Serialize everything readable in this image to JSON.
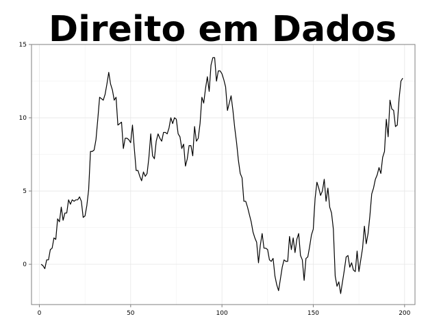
{
  "chart_data": {
    "type": "line",
    "title": "Direito em Dados",
    "xlabel": "",
    "ylabel": "",
    "xlim": [
      -4.3,
      205.7
    ],
    "ylim": [
      -2.75,
      15
    ],
    "x_ticks": [
      0,
      50,
      100,
      150,
      200
    ],
    "y_ticks": [
      0,
      5,
      10,
      15
    ],
    "grid": true,
    "series": [
      {
        "values": [
          [
            1,
            0.0
          ],
          [
            2,
            -0.1
          ],
          [
            3,
            -0.3
          ],
          [
            4,
            0.3
          ],
          [
            5,
            0.3
          ],
          [
            6,
            1.0
          ],
          [
            7,
            1.1
          ],
          [
            8,
            1.8
          ],
          [
            9,
            1.7
          ],
          [
            10,
            3.1
          ],
          [
            11,
            2.9
          ],
          [
            12,
            3.9
          ],
          [
            13,
            3.0
          ],
          [
            14,
            3.5
          ],
          [
            15,
            3.5
          ],
          [
            16,
            4.4
          ],
          [
            17,
            4.1
          ],
          [
            18,
            4.4
          ],
          [
            19,
            4.3
          ],
          [
            20,
            4.4
          ],
          [
            21,
            4.4
          ],
          [
            22,
            4.6
          ],
          [
            23,
            4.3
          ],
          [
            24,
            3.2
          ],
          [
            25,
            3.3
          ],
          [
            26,
            4.0
          ],
          [
            27,
            5.1
          ],
          [
            28,
            7.7
          ],
          [
            29,
            7.7
          ],
          [
            30,
            7.8
          ],
          [
            31,
            8.5
          ],
          [
            32,
            9.9
          ],
          [
            33,
            11.4
          ],
          [
            34,
            11.3
          ],
          [
            35,
            11.2
          ],
          [
            36,
            11.6
          ],
          [
            37,
            12.3
          ],
          [
            38,
            13.1
          ],
          [
            39,
            12.3
          ],
          [
            40,
            11.9
          ],
          [
            41,
            11.2
          ],
          [
            42,
            11.4
          ],
          [
            43,
            9.5
          ],
          [
            44,
            9.6
          ],
          [
            45,
            9.7
          ],
          [
            46,
            7.9
          ],
          [
            47,
            8.6
          ],
          [
            48,
            8.6
          ],
          [
            49,
            8.5
          ],
          [
            50,
            8.3
          ],
          [
            51,
            9.5
          ],
          [
            52,
            7.9
          ],
          [
            53,
            6.4
          ],
          [
            54,
            6.4
          ],
          [
            55,
            6.0
          ],
          [
            56,
            5.7
          ],
          [
            57,
            6.3
          ],
          [
            58,
            6.0
          ],
          [
            59,
            6.2
          ],
          [
            60,
            7.3
          ],
          [
            61,
            8.9
          ],
          [
            62,
            7.4
          ],
          [
            63,
            7.2
          ],
          [
            64,
            8.4
          ],
          [
            65,
            8.9
          ],
          [
            66,
            8.6
          ],
          [
            67,
            8.4
          ],
          [
            68,
            9.0
          ],
          [
            69,
            9.0
          ],
          [
            70,
            8.9
          ],
          [
            71,
            9.3
          ],
          [
            72,
            10.0
          ],
          [
            73,
            9.6
          ],
          [
            74,
            10.0
          ],
          [
            75,
            9.9
          ],
          [
            76,
            8.9
          ],
          [
            77,
            8.7
          ],
          [
            78,
            7.9
          ],
          [
            79,
            8.2
          ],
          [
            80,
            6.7
          ],
          [
            81,
            7.2
          ],
          [
            82,
            8.1
          ],
          [
            83,
            8.1
          ],
          [
            84,
            7.4
          ],
          [
            85,
            9.4
          ],
          [
            86,
            8.4
          ],
          [
            87,
            8.6
          ],
          [
            88,
            9.6
          ],
          [
            89,
            11.4
          ],
          [
            90,
            11.0
          ],
          [
            91,
            12.0
          ],
          [
            92,
            12.8
          ],
          [
            93,
            11.8
          ],
          [
            94,
            13.6
          ],
          [
            95,
            14.1
          ],
          [
            96,
            14.1
          ],
          [
            97,
            12.5
          ],
          [
            98,
            13.2
          ],
          [
            99,
            13.2
          ],
          [
            100,
            13.0
          ],
          [
            101,
            12.6
          ],
          [
            102,
            12.1
          ],
          [
            103,
            10.5
          ],
          [
            104,
            11.0
          ],
          [
            105,
            11.5
          ],
          [
            106,
            10.5
          ],
          [
            107,
            9.3
          ],
          [
            108,
            8.3
          ],
          [
            109,
            7.1
          ],
          [
            110,
            6.2
          ],
          [
            111,
            5.9
          ],
          [
            112,
            4.3
          ],
          [
            113,
            4.3
          ],
          [
            114,
            3.9
          ],
          [
            115,
            3.4
          ],
          [
            116,
            2.9
          ],
          [
            117,
            2.2
          ],
          [
            118,
            1.8
          ],
          [
            119,
            1.5
          ],
          [
            120,
            0.1
          ],
          [
            121,
            1.3
          ],
          [
            122,
            2.1
          ],
          [
            123,
            1.1
          ],
          [
            124,
            1.1
          ],
          [
            125,
            1.0
          ],
          [
            126,
            0.3
          ],
          [
            127,
            0.2
          ],
          [
            128,
            0.4
          ],
          [
            129,
            -0.8
          ],
          [
            130,
            -1.4
          ],
          [
            131,
            -1.8
          ],
          [
            132,
            -1.0
          ],
          [
            133,
            -0.2
          ],
          [
            134,
            0.3
          ],
          [
            135,
            0.2
          ],
          [
            136,
            0.2
          ],
          [
            137,
            1.9
          ],
          [
            138,
            1.0
          ],
          [
            139,
            1.8
          ],
          [
            140,
            0.8
          ],
          [
            141,
            1.7
          ],
          [
            142,
            2.1
          ],
          [
            143,
            0.6
          ],
          [
            144,
            0.3
          ],
          [
            145,
            -1.1
          ],
          [
            146,
            0.4
          ],
          [
            147,
            0.5
          ],
          [
            148,
            1.2
          ],
          [
            149,
            2.0
          ],
          [
            150,
            2.4
          ],
          [
            151,
            4.5
          ],
          [
            152,
            5.6
          ],
          [
            153,
            5.2
          ],
          [
            154,
            4.7
          ],
          [
            155,
            5.0
          ],
          [
            156,
            5.8
          ],
          [
            157,
            4.3
          ],
          [
            158,
            5.2
          ],
          [
            159,
            3.9
          ],
          [
            160,
            3.5
          ],
          [
            161,
            2.4
          ],
          [
            162,
            -0.8
          ],
          [
            163,
            -1.5
          ],
          [
            164,
            -1.2
          ],
          [
            165,
            -2.0
          ],
          [
            166,
            -1.2
          ],
          [
            167,
            -0.4
          ],
          [
            168,
            0.5
          ],
          [
            169,
            0.6
          ],
          [
            170,
            -0.2
          ],
          [
            171,
            0.1
          ],
          [
            172,
            -0.4
          ],
          [
            173,
            -0.5
          ],
          [
            174,
            0.9
          ],
          [
            175,
            -0.5
          ],
          [
            176,
            0.3
          ],
          [
            177,
            1.1
          ],
          [
            178,
            2.6
          ],
          [
            179,
            1.4
          ],
          [
            180,
            2.1
          ],
          [
            181,
            3.3
          ],
          [
            182,
            4.8
          ],
          [
            183,
            5.2
          ],
          [
            184,
            5.8
          ],
          [
            185,
            6.1
          ],
          [
            186,
            6.6
          ],
          [
            187,
            6.2
          ],
          [
            188,
            7.3
          ],
          [
            189,
            7.7
          ],
          [
            190,
            9.9
          ],
          [
            191,
            8.7
          ],
          [
            192,
            11.2
          ],
          [
            193,
            10.6
          ],
          [
            194,
            10.5
          ],
          [
            195,
            9.4
          ],
          [
            196,
            9.5
          ],
          [
            197,
            11.3
          ],
          [
            198,
            12.5
          ],
          [
            199,
            12.7
          ]
        ]
      }
    ]
  }
}
